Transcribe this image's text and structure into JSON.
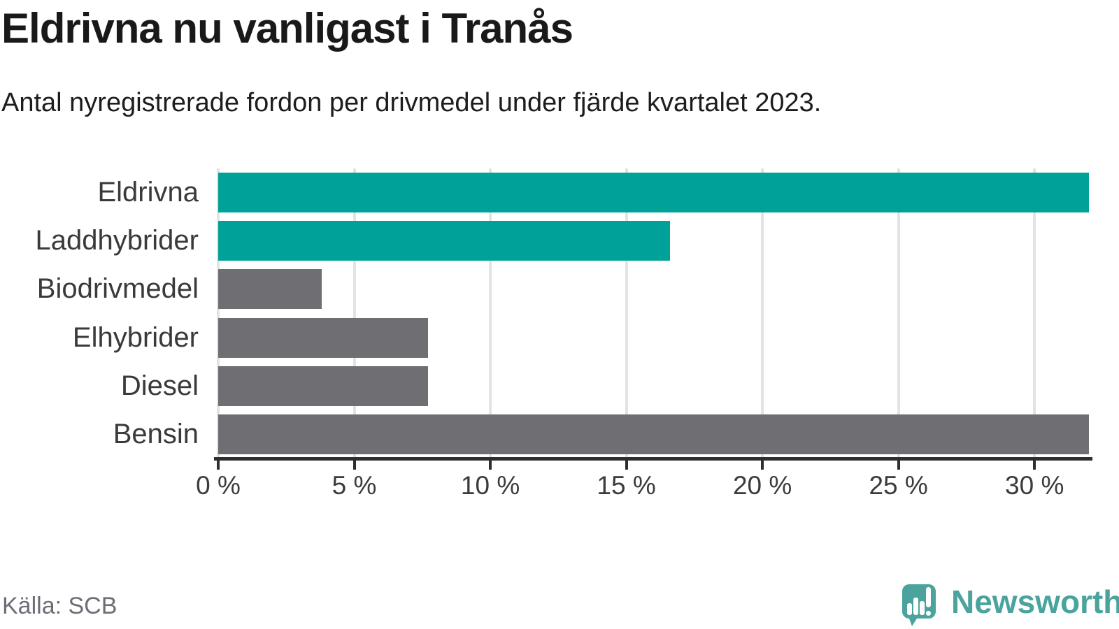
{
  "title": "Eldrivna nu vanligast i Tranås",
  "subtitle": "Antal nyregistrerade fordon per drivmedel under fjärde kvartalet 2023.",
  "source": "Källa: SCB",
  "brand": {
    "name": "Newsworthy",
    "icon": "bar-chart-speech-bubble-icon",
    "color": "#4aa49d"
  },
  "colors": {
    "background": "#ffffff",
    "highlight_bar": "#00a198",
    "default_bar": "#6e6e73",
    "gridline": "#e3e3e3",
    "axis": "#2e2e2e",
    "title_text": "#191919",
    "label_text": "#3a3a3a",
    "source_text": "#6d6d76"
  },
  "chart_data": {
    "type": "bar",
    "orientation": "horizontal",
    "title": "Eldrivna nu vanligast i Tranås",
    "subtitle": "Antal nyregistrerade fordon per drivmedel under fjärde kvartalet 2023.",
    "categories": [
      "Eldrivna",
      "Laddhybrider",
      "Biodrivmedel",
      "Elhybrider",
      "Diesel",
      "Bensin"
    ],
    "values": [
      32,
      16.6,
      3.8,
      7.7,
      7.7,
      32
    ],
    "unit": "%",
    "bar_colors": [
      "#00a198",
      "#00a198",
      "#6e6e73",
      "#6e6e73",
      "#6e6e73",
      "#6e6e73"
    ],
    "xlim": [
      0,
      32
    ],
    "xticks": [
      0,
      5,
      10,
      15,
      20,
      25,
      30
    ],
    "xtick_labels": [
      "0 %",
      "5 %",
      "10 %",
      "15 %",
      "20 %",
      "25 %",
      "30 %"
    ],
    "grid": "vertical-gridlines",
    "legend": "none",
    "value_labels": "none"
  }
}
